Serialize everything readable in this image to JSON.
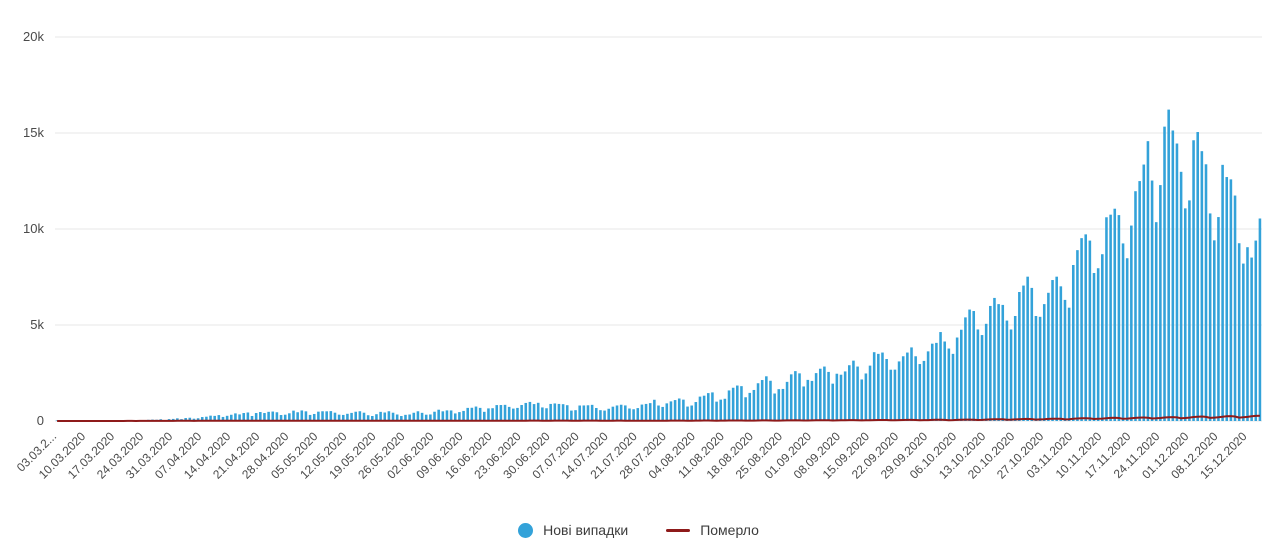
{
  "chart": {
    "background": "#ffffff",
    "grid_color": "#e7e7e7",
    "tick_color": "#4a4a4a",
    "plot": {
      "note": "daily bars with deaths line hugging zero baseline"
    }
  },
  "chart_data": {
    "type": "bar",
    "title": "",
    "xlabel": "",
    "ylabel": "",
    "ylim": [
      0,
      20000
    ],
    "y_tick_values": [
      0,
      5000,
      10000,
      15000,
      20000
    ],
    "y_tick_labels": [
      "0",
      "5k",
      "10k",
      "15k",
      "20k"
    ],
    "grid": true,
    "legend_position": "bottom-center",
    "x_label_rotation": -45,
    "x_tick_labels": [
      "03.03.2...",
      "10.03.2020",
      "17.03.2020",
      "24.03.2020",
      "31.03.2020",
      "07.04.2020",
      "14.04.2020",
      "21.04.2020",
      "28.04.2020",
      "05.05.2020",
      "12.05.2020",
      "19.05.2020",
      "26.05.2020",
      "02.06.2020",
      "09.06.2020",
      "16.06.2020",
      "23.06.2020",
      "30.06.2020",
      "07.07.2020",
      "14.07.2020",
      "21.07.2020",
      "28.07.2020",
      "04.08.2020",
      "11.08.2020",
      "18.08.2020",
      "25.08.2020",
      "01.09.2020",
      "08.09.2020",
      "15.09.2020",
      "22.09.2020",
      "29.09.2020",
      "06.10.2020",
      "13.10.2020",
      "20.10.2020",
      "27.10.2020",
      "03.11.2020",
      "10.11.2020",
      "17.11.2020",
      "24.11.2020",
      "01.12.2020",
      "08.12.2020",
      "15.12.2020"
    ],
    "x_ticks_every_n_bars": 7,
    "series": [
      {
        "name": "Нові випадки",
        "type": "bar",
        "color": "#33a2d9",
        "values": [
          1,
          0,
          1,
          1,
          2,
          1,
          2,
          3,
          4,
          3,
          5,
          6,
          4,
          7,
          14,
          20,
          26,
          33,
          41,
          26,
          30,
          49,
          62,
          73,
          66,
          92,
          36,
          100,
          109,
          140,
          97,
          155,
          170,
          120,
          143,
          206,
          224,
          279,
          266,
          308,
          211,
          270,
          325,
          397,
          343,
          415,
          444,
          261,
          415,
          467,
          415,
          477,
          492,
          455,
          311,
          328,
          401,
          540,
          455,
          550,
          504,
          316,
          366,
          487,
          507,
          504,
          515,
          433,
          330,
          316,
          375,
          422,
          483,
          508,
          432,
          301,
          260,
          354,
          476,
          442,
          508,
          432,
          339,
          259,
          321,
          339,
          429,
          507,
          425,
          328,
          340,
          483,
          588,
          504,
          553,
          550,
          394,
          463,
          525,
          683,
          689,
          753,
          683,
          478,
          656,
          666,
          829,
          832,
          841,
          735,
          646,
          681,
          833,
          940,
          994,
          882,
          948,
          706,
          664,
          889,
          914,
          889,
          876,
          823,
          543,
          564,
          807,
          810,
          819,
          841,
          678,
          564,
          543,
          638,
          746,
          809,
          847,
          811,
          651,
          612,
          673,
          856,
          889,
          931,
          1106,
          807,
          733,
          919,
          1022,
          1090,
          1172,
          1112,
          752,
          807,
          988,
          1271,
          1318,
          1453,
          1489,
          1008,
          1112,
          1158,
          1592,
          1732,
          1847,
          1815,
          1236,
          1464,
          1616,
          1967,
          2134,
          2328,
          2096,
          1432,
          1658,
          1670,
          2038,
          2430,
          2598,
          2481,
          1799,
          2141,
          2088,
          2495,
          2723,
          2836,
          2556,
          1945,
          2462,
          2411,
          2582,
          2905,
          3144,
          2836,
          2164,
          2476,
          2884,
          3584,
          3497,
          3565,
          3228,
          2671,
          2675,
          3103,
          3372,
          3565,
          3833,
          3372,
          2966,
          3130,
          3627,
          4027,
          4069,
          4633,
          4140,
          3774,
          3497,
          4348,
          4753,
          5397,
          5804,
          5728,
          4768,
          4476,
          5062,
          5992,
          6410,
          6088,
          6046,
          5231,
          4766,
          5469,
          6719,
          7053,
          7517,
          6932,
          5469,
          5426,
          6088,
          6677,
          7342,
          7517,
          7014,
          6308,
          5902,
          8125,
          8899,
          9524,
          9721,
          9397,
          7709,
          7957,
          8687,
          10611,
          10746,
          11057,
          10724,
          9249,
          8478,
          10179,
          11968,
          12496,
          13357,
          14575,
          12524,
          10357,
          12287,
          15331,
          16218,
          15131,
          14452,
          12978,
          11075,
          11490,
          14622,
          15051,
          14054,
          13371,
          10811,
          9410,
          10622,
          13341,
          12706,
          12585,
          11742,
          9259,
          8199,
          9052,
          8513,
          9397,
          10547
        ]
      },
      {
        "name": "Померло",
        "type": "line",
        "color": "#8e1a1a",
        "values": [
          0,
          0,
          0,
          0,
          0,
          1,
          0,
          0,
          1,
          0,
          1,
          1,
          0,
          1,
          1,
          2,
          2,
          3,
          3,
          2,
          3,
          4,
          5,
          5,
          6,
          6,
          4,
          5,
          7,
          8,
          8,
          9,
          9,
          7,
          8,
          9,
          10,
          11,
          11,
          10,
          8,
          9,
          10,
          12,
          13,
          13,
          12,
          9,
          10,
          11,
          13,
          14,
          14,
          13,
          10,
          11,
          12,
          14,
          15,
          15,
          14,
          10,
          11,
          12,
          14,
          15,
          14,
          13,
          10,
          11,
          11,
          13,
          14,
          14,
          13,
          9,
          10,
          10,
          12,
          13,
          13,
          12,
          9,
          10,
          10,
          11,
          12,
          12,
          11,
          8,
          9,
          10,
          12,
          13,
          13,
          12,
          9,
          10,
          11,
          13,
          15,
          15,
          14,
          10,
          12,
          13,
          15,
          17,
          17,
          16,
          12,
          13,
          15,
          18,
          20,
          20,
          19,
          14,
          15,
          18,
          21,
          23,
          23,
          22,
          16,
          17,
          17,
          19,
          21,
          21,
          19,
          14,
          15,
          15,
          17,
          19,
          19,
          18,
          13,
          14,
          14,
          16,
          18,
          18,
          17,
          13,
          14,
          17,
          19,
          21,
          22,
          20,
          15,
          16,
          19,
          22,
          24,
          25,
          23,
          17,
          19,
          21,
          24,
          26,
          27,
          25,
          19,
          21,
          23,
          27,
          29,
          30,
          28,
          21,
          23,
          26,
          30,
          33,
          34,
          31,
          24,
          26,
          30,
          35,
          38,
          39,
          36,
          27,
          30,
          36,
          41,
          45,
          46,
          43,
          32,
          36,
          41,
          48,
          52,
          53,
          50,
          37,
          41,
          45,
          52,
          57,
          58,
          54,
          41,
          45,
          49,
          57,
          62,
          64,
          59,
          44,
          49,
          57,
          66,
          72,
          74,
          69,
          52,
          57,
          72,
          84,
          92,
          94,
          88,
          66,
          72,
          82,
          95,
          104,
          107,
          100,
          75,
          82,
          93,
          108,
          118,
          121,
          113,
          85,
          93,
          112,
          130,
          142,
          146,
          136,
          102,
          112,
          127,
          147,
          161,
          165,
          154,
          116,
          127,
          141,
          164,
          179,
          184,
          171,
          129,
          141,
          156,
          181,
          198,
          203,
          189,
          142,
          156,
          178,
          207,
          226,
          232,
          216,
          162,
          178,
          194,
          226,
          247,
          254,
          236,
          177,
          194,
          211,
          245,
          268,
          274
        ]
      }
    ]
  }
}
